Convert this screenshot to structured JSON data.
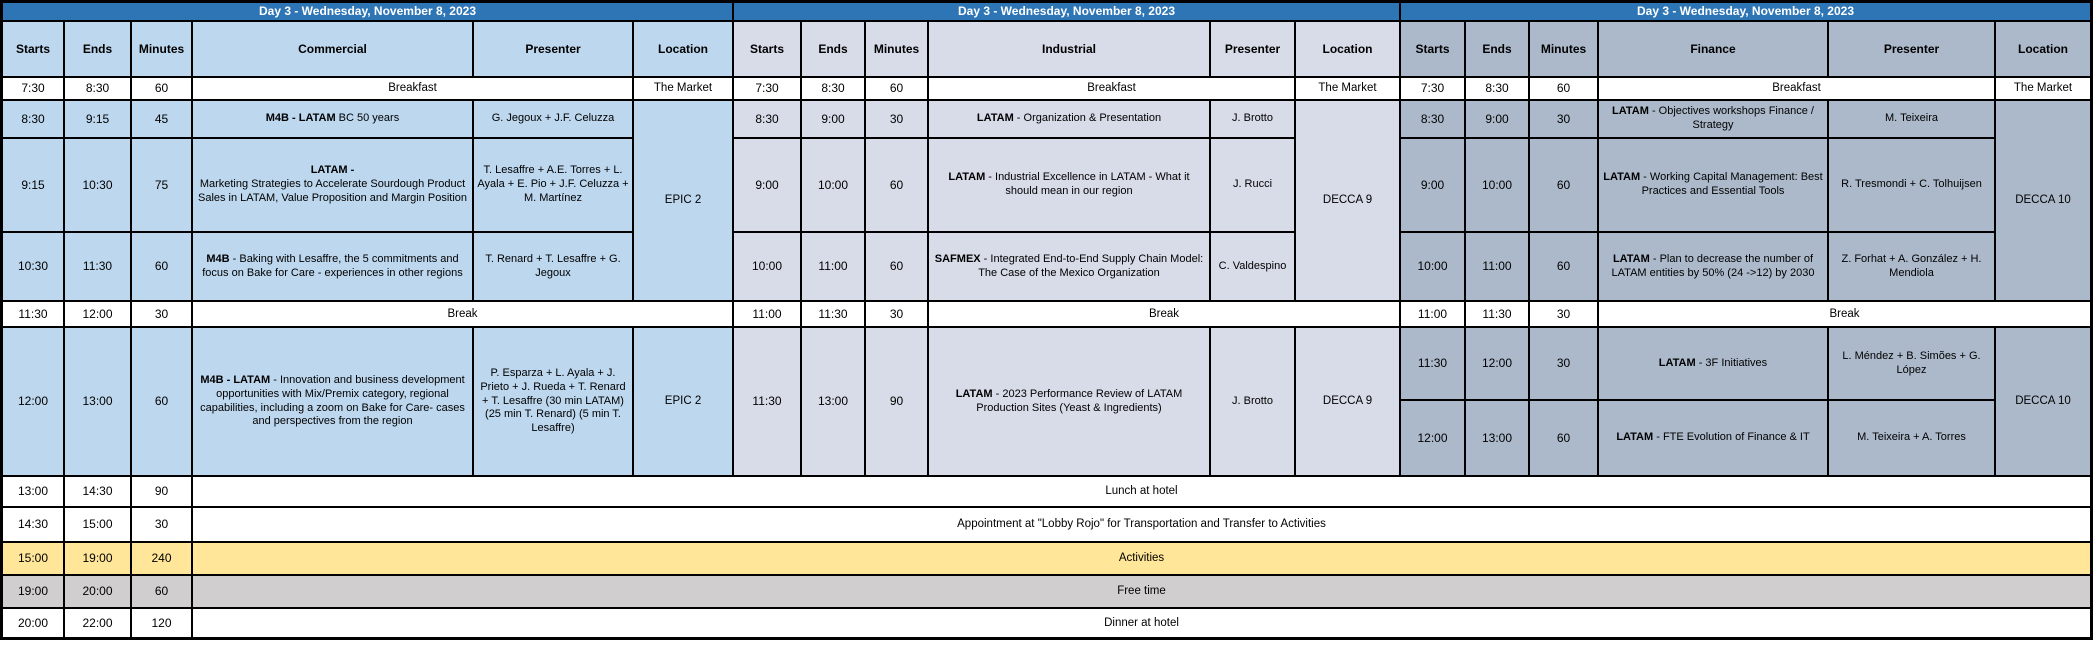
{
  "title": "Day 3 - Wednesday, November 8, 2023",
  "headers": {
    "starts": "Starts",
    "ends": "Ends",
    "minutes": "Minutes",
    "presenter": "Presenter",
    "location": "Location"
  },
  "colors": {
    "title_bar": "#2E75B6",
    "title_text": "#FFFFFF",
    "grid_line": "#000000",
    "section_commercial": "#BDD7EE",
    "section_industrial": "#D8DBE8",
    "section_finance": "#ACB9CA",
    "activities_row": "#FFE699",
    "free_time_row": "#D0CECE",
    "plain_row": "#FFFFFF"
  },
  "sections": [
    {
      "name": "Commercial",
      "fill": "#BDD7EE",
      "breakfast": {
        "starts": "7:30",
        "ends": "8:30",
        "minutes": "60",
        "label": "Breakfast",
        "location": "The Market"
      },
      "morning_rows": [
        {
          "starts": "8:30",
          "ends": "9:15",
          "minutes": "45",
          "topic_bold": "M4B - LATAM",
          "topic_rest": " BC 50 years",
          "presenter": "G. Jegoux + J.F. Celuzza"
        },
        {
          "starts": "9:15",
          "ends": "10:30",
          "minutes": "75",
          "topic_bold": "LATAM -",
          "topic_rest": "\nMarketing Strategies to Accelerate Sourdough Product Sales in LATAM, Value Proposition and Margin Position",
          "presenter": "T. Lesaffre + A.E. Torres + L. Ayala + E. Pio + J.F. Celuzza + M. Martínez"
        },
        {
          "starts": "10:30",
          "ends": "11:30",
          "minutes": "60",
          "topic_bold": "M4B",
          "topic_rest": " - Baking with Lesaffre, the 5 commitments and focus on Bake for Care - experiences in other regions",
          "presenter": "T. Renard + T. Lesaffre + G. Jegoux"
        }
      ],
      "morning_location": "EPIC 2",
      "break": {
        "starts": "11:30",
        "ends": "12:00",
        "minutes": "30",
        "label": "Break"
      },
      "afternoon_rows": [
        {
          "starts": "12:00",
          "ends": "13:00",
          "minutes": "60",
          "topic_bold": "M4B - LATAM",
          "topic_rest": " - Innovation and business development opportunities with Mix/Premix category, regional capabilities, including a zoom on Bake for Care- cases and perspectives from the region",
          "presenter": "P. Esparza + L. Ayala + J. Prieto + J. Rueda + T. Renard + T. Lesaffre (30 min LATAM) (25 min T. Renard) (5 min T. Lesaffre)"
        }
      ],
      "afternoon_location": "EPIC 2"
    },
    {
      "name": "Industrial",
      "fill": "#D8DBE8",
      "breakfast": {
        "starts": "7:30",
        "ends": "8:30",
        "minutes": "60",
        "label": "Breakfast",
        "location": "The Market"
      },
      "morning_rows": [
        {
          "starts": "8:30",
          "ends": "9:00",
          "minutes": "30",
          "topic_bold": "LATAM",
          "topic_rest": " - Organization & Presentation",
          "presenter": "J. Brotto"
        },
        {
          "starts": "9:00",
          "ends": "10:00",
          "minutes": "60",
          "topic_bold": "LATAM",
          "topic_rest": " - Industrial Excellence in LATAM - What it should mean in our region",
          "presenter": "J. Rucci"
        },
        {
          "starts": "10:00",
          "ends": "11:00",
          "minutes": "60",
          "topic_bold": "SAFMEX",
          "topic_rest": " - Integrated End-to-End Supply Chain Model: The Case of the Mexico Organization",
          "presenter": "C. Valdespino"
        }
      ],
      "morning_location": "DECCA 9",
      "break": {
        "starts": "11:00",
        "ends": "11:30",
        "minutes": "30",
        "label": "Break"
      },
      "afternoon_rows": [
        {
          "starts": "11:30",
          "ends": "13:00",
          "minutes": "90",
          "topic_bold": "LATAM",
          "topic_rest": " - 2023 Performance Review of LATAM Production Sites (Yeast & Ingredients)",
          "presenter": "J. Brotto"
        }
      ],
      "afternoon_location": "DECCA 9"
    },
    {
      "name": "Finance",
      "fill": "#ACB9CA",
      "breakfast": {
        "starts": "7:30",
        "ends": "8:30",
        "minutes": "60",
        "label": "Breakfast",
        "location": "The Market"
      },
      "morning_rows": [
        {
          "starts": "8:30",
          "ends": "9:00",
          "minutes": "30",
          "topic_bold": "LATAM",
          "topic_rest": " - Objectives workshops Finance / Strategy",
          "presenter": "M. Teixeira"
        },
        {
          "starts": "9:00",
          "ends": "10:00",
          "minutes": "60",
          "topic_bold": "LATAM",
          "topic_rest": " - Working Capital Management: Best Practices and Essential Tools",
          "presenter": "R. Tresmondi + C. Tolhuijsen"
        },
        {
          "starts": "10:00",
          "ends": "11:00",
          "minutes": "60",
          "topic_bold": "LATAM",
          "topic_rest": " - Plan to decrease the number of LATAM entities by 50% (24 ->12) by 2030",
          "presenter": "Z. Forhat + A. González + H. Mendiola"
        }
      ],
      "morning_location": "DECCA 10",
      "break": {
        "starts": "11:00",
        "ends": "11:30",
        "minutes": "30",
        "label": "Break"
      },
      "afternoon_rows": [
        {
          "starts": "11:30",
          "ends": "12:00",
          "minutes": "30",
          "topic_bold": "LATAM",
          "topic_rest": " - 3F Initiatives",
          "presenter": "L. Méndez + B. Simões + G. López"
        },
        {
          "starts": "12:00",
          "ends": "13:00",
          "minutes": "60",
          "topic_bold": "LATAM",
          "topic_rest": " - FTE Evolution of Finance & IT",
          "presenter": "M. Teixeira + A. Torres"
        }
      ],
      "afternoon_location": "DECCA 10"
    }
  ],
  "full_rows": [
    {
      "starts": "13:00",
      "ends": "14:30",
      "minutes": "90",
      "label": "Lunch at hotel",
      "fill": "#FFFFFF"
    },
    {
      "starts": "14:30",
      "ends": "15:00",
      "minutes": "30",
      "label": "Appointment at \"Lobby Rojo\" for Transportation and Transfer to Activities",
      "fill": "#FFFFFF"
    },
    {
      "starts": "15:00",
      "ends": "19:00",
      "minutes": "240",
      "label": "Activities",
      "fill": "#FFE699"
    },
    {
      "starts": "19:00",
      "ends": "20:00",
      "minutes": "60",
      "label": "Free time",
      "fill": "#D0CECE"
    },
    {
      "starts": "20:00",
      "ends": "22:00",
      "minutes": "120",
      "label": "Dinner at hotel",
      "fill": "#FFFFFF"
    }
  ]
}
